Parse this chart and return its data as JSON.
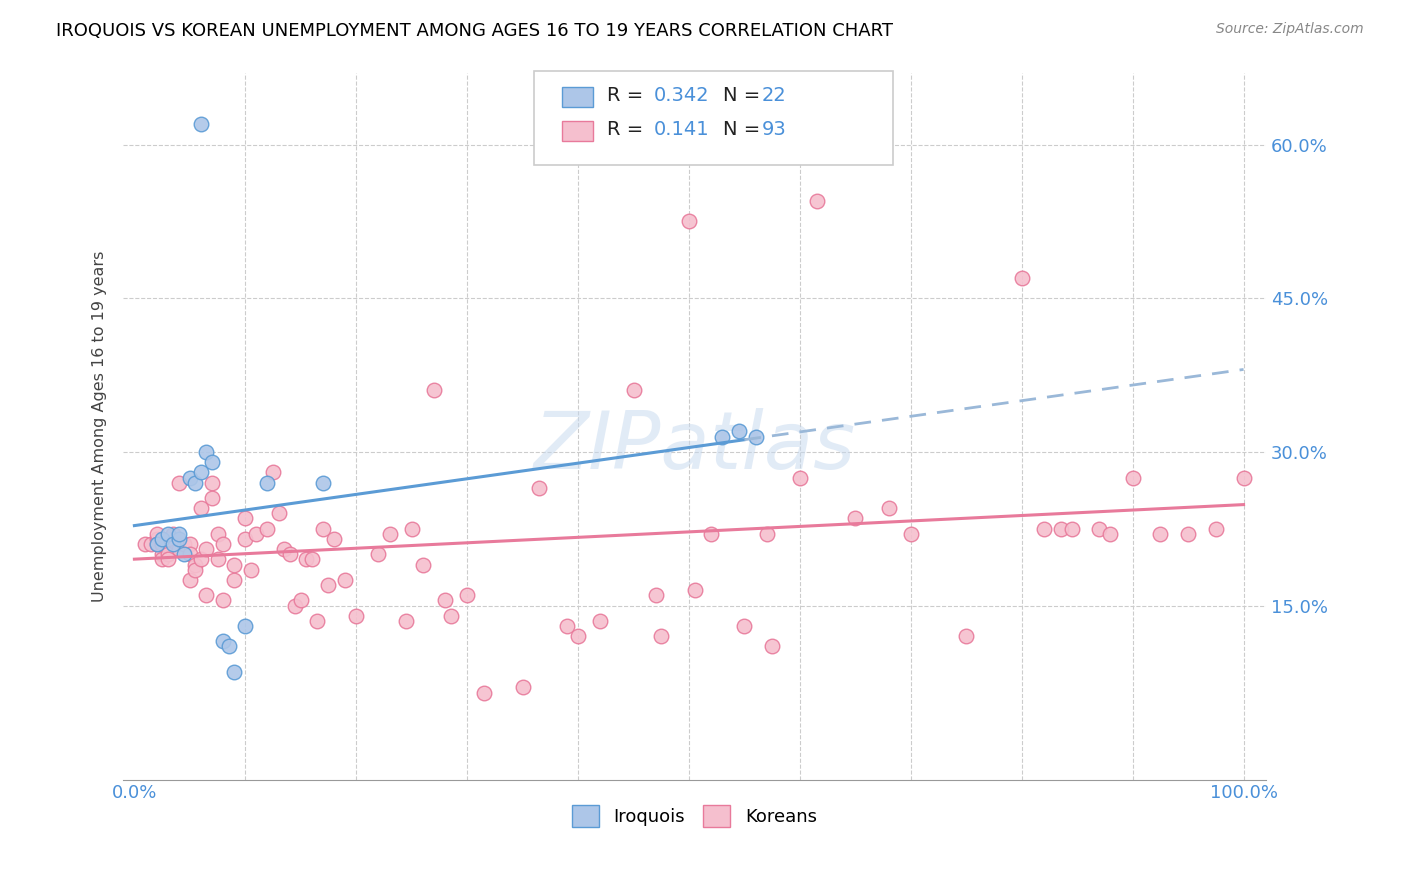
{
  "title": "IROQUOIS VS KOREAN UNEMPLOYMENT AMONG AGES 16 TO 19 YEARS CORRELATION CHART",
  "source": "Source: ZipAtlas.com",
  "ylabel": "Unemployment Among Ages 16 to 19 years",
  "xlim": [
    -0.01,
    1.02
  ],
  "ylim": [
    -0.02,
    0.67
  ],
  "yticks": [
    0.15,
    0.3,
    0.45,
    0.6
  ],
  "yticklabels": [
    "15.0%",
    "30.0%",
    "45.0%",
    "60.0%"
  ],
  "xtick_show": [
    0.0,
    1.0
  ],
  "xticklabels_show": [
    "0.0%",
    "100.0%"
  ],
  "legend_labels": [
    "Iroquois",
    "Koreans"
  ],
  "iroquois_color": "#adc6e8",
  "korean_color": "#f5bfce",
  "iroquois_line_color": "#5b9bd5",
  "korean_line_color": "#e87a9b",
  "dashed_line_color": "#9ab8d8",
  "watermark": "ZIPatlas",
  "iroquois_x": [
    0.02,
    0.025,
    0.03,
    0.035,
    0.04,
    0.04,
    0.045,
    0.05,
    0.055,
    0.06,
    0.065,
    0.07,
    0.08,
    0.085,
    0.09,
    0.1,
    0.12,
    0.17,
    0.53,
    0.545,
    0.56,
    0.06
  ],
  "iroquois_y": [
    0.21,
    0.215,
    0.22,
    0.21,
    0.215,
    0.22,
    0.2,
    0.275,
    0.27,
    0.28,
    0.3,
    0.29,
    0.115,
    0.11,
    0.085,
    0.13,
    0.27,
    0.27,
    0.315,
    0.32,
    0.315,
    0.62
  ],
  "korean_x": [
    0.01,
    0.015,
    0.02,
    0.02,
    0.02,
    0.025,
    0.025,
    0.025,
    0.025,
    0.03,
    0.03,
    0.03,
    0.035,
    0.04,
    0.04,
    0.045,
    0.05,
    0.05,
    0.05,
    0.055,
    0.055,
    0.06,
    0.06,
    0.065,
    0.065,
    0.07,
    0.07,
    0.075,
    0.075,
    0.08,
    0.08,
    0.09,
    0.09,
    0.1,
    0.1,
    0.105,
    0.11,
    0.12,
    0.125,
    0.13,
    0.135,
    0.14,
    0.145,
    0.15,
    0.155,
    0.16,
    0.165,
    0.17,
    0.175,
    0.18,
    0.19,
    0.2,
    0.22,
    0.23,
    0.245,
    0.25,
    0.26,
    0.27,
    0.28,
    0.285,
    0.3,
    0.315,
    0.35,
    0.365,
    0.39,
    0.4,
    0.42,
    0.45,
    0.47,
    0.475,
    0.5,
    0.505,
    0.52,
    0.55,
    0.57,
    0.575,
    0.6,
    0.615,
    0.65,
    0.68,
    0.7,
    0.75,
    0.8,
    0.82,
    0.835,
    0.845,
    0.87,
    0.88,
    0.9,
    0.925,
    0.95,
    0.975,
    1.0
  ],
  "korean_y": [
    0.21,
    0.21,
    0.215,
    0.22,
    0.21,
    0.21,
    0.2,
    0.195,
    0.21,
    0.2,
    0.195,
    0.215,
    0.22,
    0.27,
    0.205,
    0.21,
    0.21,
    0.2,
    0.175,
    0.19,
    0.185,
    0.195,
    0.245,
    0.16,
    0.205,
    0.27,
    0.255,
    0.22,
    0.195,
    0.21,
    0.155,
    0.175,
    0.19,
    0.235,
    0.215,
    0.185,
    0.22,
    0.225,
    0.28,
    0.24,
    0.205,
    0.2,
    0.15,
    0.155,
    0.195,
    0.195,
    0.135,
    0.225,
    0.17,
    0.215,
    0.175,
    0.14,
    0.2,
    0.22,
    0.135,
    0.225,
    0.19,
    0.36,
    0.155,
    0.14,
    0.16,
    0.065,
    0.07,
    0.265,
    0.13,
    0.12,
    0.135,
    0.36,
    0.16,
    0.12,
    0.525,
    0.165,
    0.22,
    0.13,
    0.22,
    0.11,
    0.275,
    0.545,
    0.235,
    0.245,
    0.22,
    0.12,
    0.47,
    0.225,
    0.225,
    0.225,
    0.225,
    0.22,
    0.275,
    0.22,
    0.22,
    0.225,
    0.275
  ]
}
